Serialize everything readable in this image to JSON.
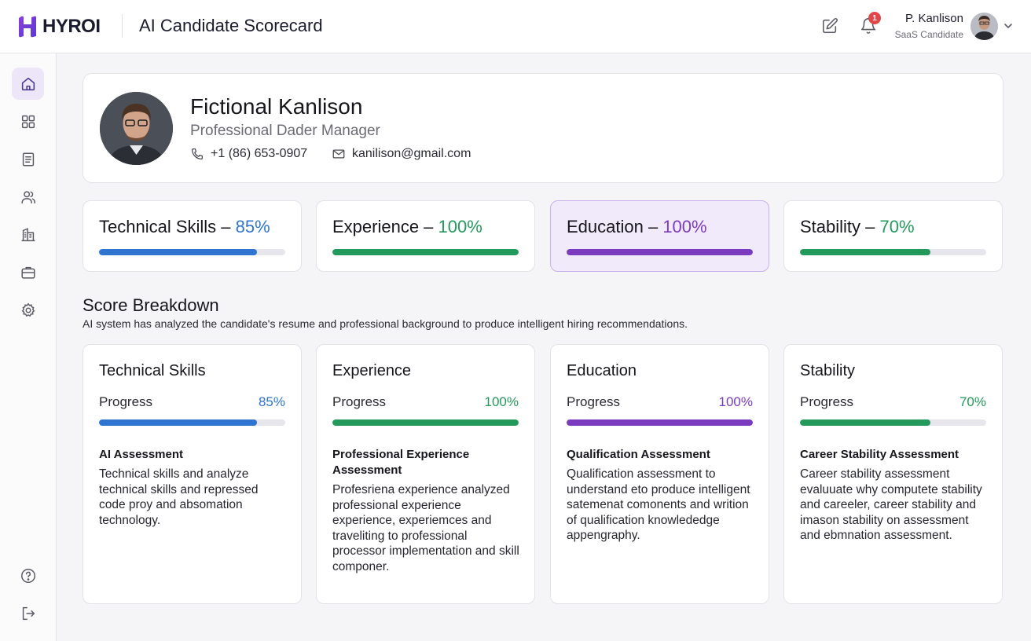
{
  "header": {
    "logo_text": "HYROI",
    "app_title": "AI Candidate Scorecard",
    "notification_count": "1",
    "user_name": "P. Kanlison",
    "user_role": "SaaS Candidate"
  },
  "sidebar": {
    "items": [
      {
        "name": "home",
        "icon": "home-icon",
        "active": true
      },
      {
        "name": "dashboard",
        "icon": "grid-icon",
        "active": false
      },
      {
        "name": "documents",
        "icon": "document-icon",
        "active": false
      },
      {
        "name": "candidates",
        "icon": "users-icon",
        "active": false
      },
      {
        "name": "company",
        "icon": "building-icon",
        "active": false
      },
      {
        "name": "jobs",
        "icon": "briefcase-icon",
        "active": false
      },
      {
        "name": "settings",
        "icon": "gear-icon",
        "active": false
      }
    ],
    "bottom_items": [
      {
        "name": "help",
        "icon": "help-icon"
      },
      {
        "name": "logout",
        "icon": "logout-icon"
      }
    ]
  },
  "profile": {
    "name": "Fictional Kanlison",
    "title": "Professional Dader Manager",
    "phone": "+1 (86) 653-0907",
    "email": "kanilison@gmail.com"
  },
  "scores": [
    {
      "label": "Technical Skills – ",
      "value": "85%",
      "percent": 85,
      "color": "#2f74d0"
    },
    {
      "label": "Experience – ",
      "value": "100%",
      "percent": 100,
      "color": "#239a5b"
    },
    {
      "label": "Education – ",
      "value": "100%",
      "percent": 100,
      "color": "#7a3bbf"
    },
    {
      "label": "Stability – ",
      "value": "70%",
      "percent": 70,
      "color": "#239a5b"
    }
  ],
  "breakdown": {
    "title": "Score Breakdown",
    "subtitle": "AI system has analyzed the candidate's resume and professional background to produce intelligent hiring recommendations.",
    "cards": [
      {
        "title": "Technical Skills",
        "progress_label": "Progress",
        "value": "85%",
        "percent": 85,
        "color": "#2f74d0",
        "assessment_title": "AI Assessment",
        "assessment_text": "Technical skills and analyze technical skills and repressed code proy and absomation technology."
      },
      {
        "title": "Experience",
        "progress_label": "Progress",
        "value": "100%",
        "percent": 100,
        "color": "#239a5b",
        "assessment_title": "Professional Experience Assessment",
        "assessment_text": "Profesriena experience analyzed professional experience experience, experiemces and traveliting to professional processor implementation and skill componer."
      },
      {
        "title": "Education",
        "progress_label": "Progress",
        "value": "100%",
        "percent": 100,
        "color": "#7a3bbf",
        "assessment_title": "Qualification Assessment",
        "assessment_text": "Qualification assessment to understand eto produce intelligent satemenat comonents and writion of qualification knowlededge appengraphy."
      },
      {
        "title": "Stability",
        "progress_label": "Progress",
        "value": "70%",
        "percent": 70,
        "color": "#239a5b",
        "assessment_title": "Career Stability Assessment",
        "assessment_text": "Career stability assessment evaluuate why computete stability and careeler, career stability and imason stability on assessment and ebmnation assessment."
      }
    ]
  }
}
